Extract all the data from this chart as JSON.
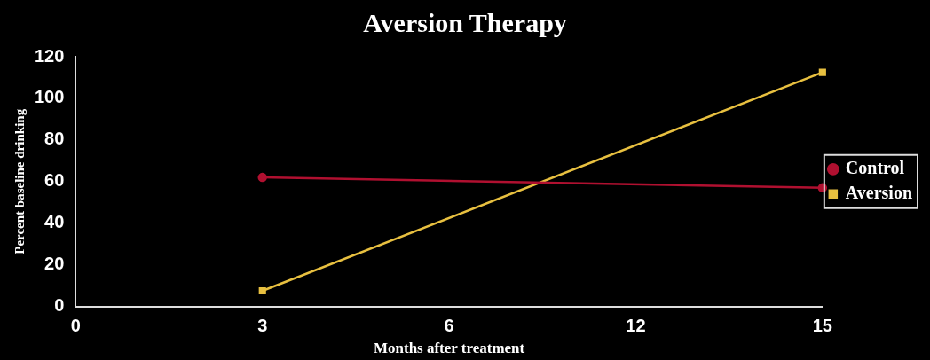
{
  "chart_data": {
    "type": "line",
    "title": "Aversion Therapy",
    "xlabel": "Months after treatment",
    "ylabel": "Percent baseline drinking",
    "categories": [
      "0",
      "3",
      "6",
      "12",
      "15"
    ],
    "series": [
      {
        "name": "Control",
        "color": "#b01030",
        "values": [
          null,
          62,
          null,
          null,
          57
        ],
        "marker": "circle"
      },
      {
        "name": "Aversion",
        "color": "#e8c040",
        "values": [
          null,
          7.5,
          null,
          null,
          112.5
        ],
        "marker": "square"
      }
    ],
    "ylim": [
      0,
      120
    ],
    "yticks": [
      0,
      20,
      40,
      60,
      80,
      100,
      120
    ],
    "grid": false,
    "legend": "right",
    "line_style": "solid"
  }
}
